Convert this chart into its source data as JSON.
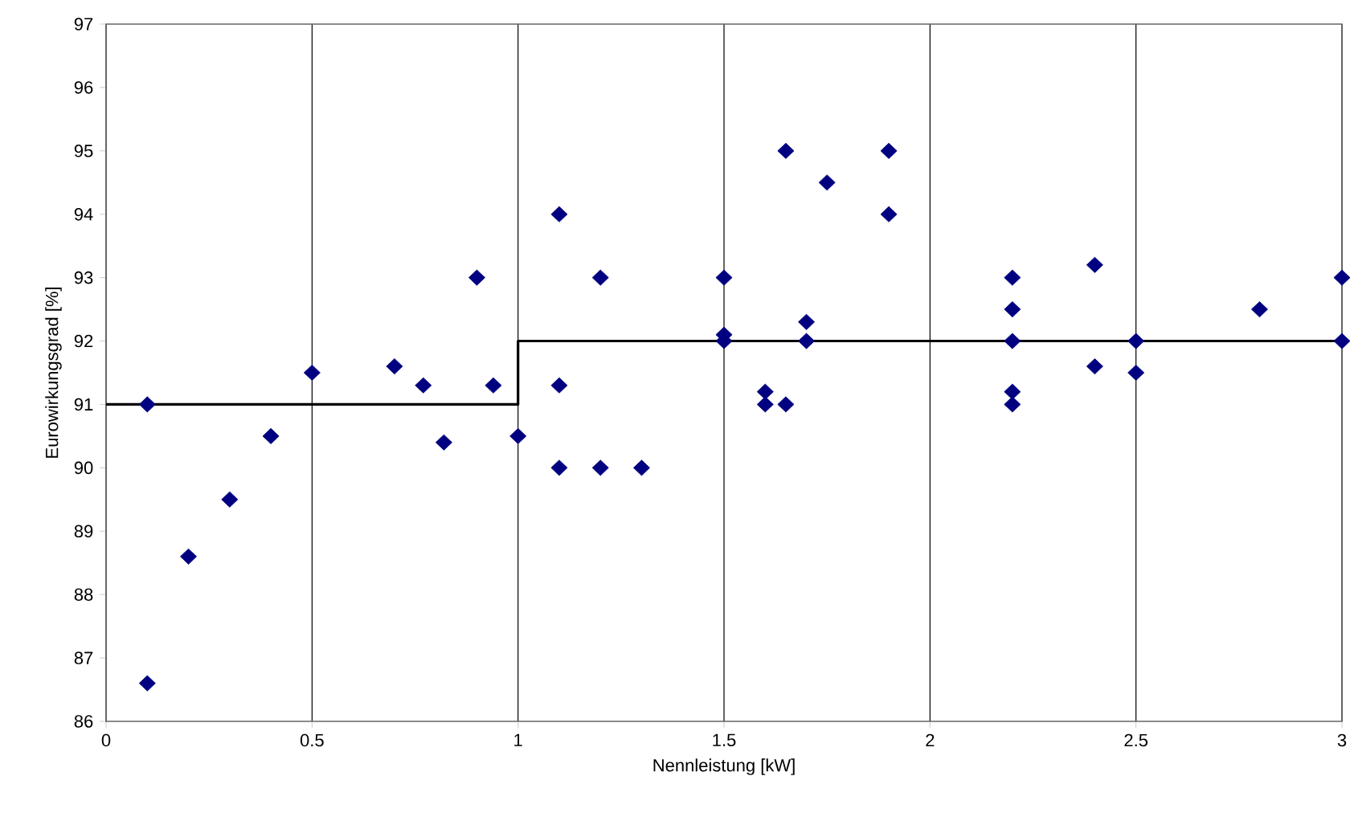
{
  "chart_data": {
    "type": "scatter",
    "xlabel": "Nennleistung [kW]",
    "ylabel": "Eurowirkungsgrad [%]",
    "xlim": [
      0,
      3
    ],
    "ylim": [
      86,
      97
    ],
    "xticks": [
      0,
      0.5,
      1,
      1.5,
      2,
      2.5,
      3
    ],
    "yticks": [
      86,
      87,
      88,
      89,
      90,
      91,
      92,
      93,
      94,
      95,
      96,
      97
    ],
    "grid": "x",
    "legend": false,
    "series": [
      {
        "color": "#000080",
        "marker": "diamond",
        "x": [
          0.1,
          0.1,
          0.2,
          0.3,
          0.4,
          0.5,
          0.7,
          0.77,
          0.82,
          0.9,
          0.94,
          1.0,
          1.1,
          1.1,
          1.1,
          1.2,
          1.2,
          1.3,
          1.5,
          1.5,
          1.5,
          1.6,
          1.6,
          1.65,
          1.65,
          1.7,
          1.7,
          1.75,
          1.9,
          1.9,
          2.2,
          2.2,
          2.2,
          2.2,
          2.2,
          2.4,
          2.4,
          2.5,
          2.5,
          2.8,
          3,
          3
        ],
        "values": [
          91,
          86.6,
          88.6,
          89.5,
          90.5,
          91.5,
          91.6,
          91.3,
          90.4,
          93,
          91.3,
          90.5,
          94,
          91.3,
          90,
          93,
          90,
          90,
          93,
          92.1,
          92,
          91.2,
          91,
          95,
          91,
          92.3,
          92,
          94.5,
          95,
          94,
          93,
          92.5,
          92,
          91.2,
          91,
          93.2,
          91.6,
          92,
          91.5,
          92.5,
          93,
          92
        ]
      },
      {
        "type": "line",
        "color": "#000000",
        "marker": "none",
        "line_style": "solid",
        "x": [
          0,
          1,
          1,
          3
        ],
        "values": [
          91,
          91,
          92,
          92
        ]
      }
    ]
  }
}
